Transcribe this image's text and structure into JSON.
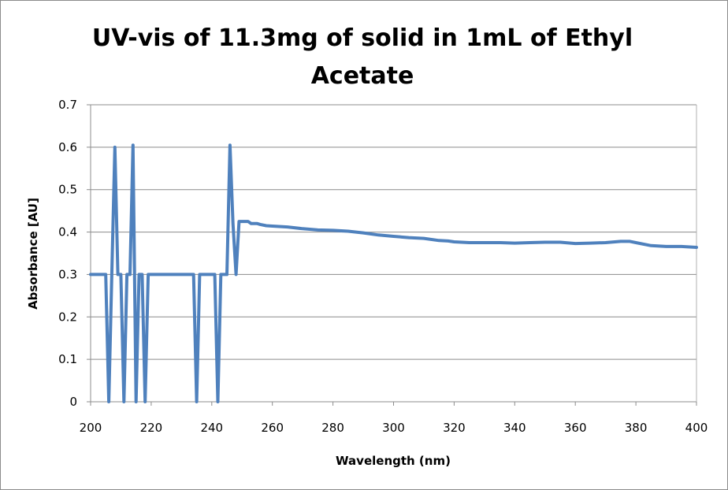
{
  "chart_data": {
    "type": "line",
    "title_line1": "UV-vis of 11.3mg of solid in 1mL of Ethyl",
    "title_line2": "Acetate",
    "xlabel": "Wavelength (nm)",
    "ylabel": "Absorbance [AU]",
    "xlim": [
      200,
      400
    ],
    "ylim": [
      0,
      0.7
    ],
    "xticks": [
      200,
      220,
      240,
      260,
      280,
      300,
      320,
      340,
      360,
      380,
      400
    ],
    "yticks": [
      0,
      0.1,
      0.2,
      0.3,
      0.4,
      0.5,
      0.6,
      0.7
    ],
    "ytick_labels": [
      "0",
      "0.1",
      "0.2",
      "0.3",
      "0.4",
      "0.5",
      "0.6",
      "0.7"
    ],
    "grid": "horizontal",
    "line_color": "#4f81bd",
    "series": [
      {
        "x": [
          200,
          201,
          202,
          203,
          204,
          205,
          206,
          207,
          208,
          209,
          210,
          211,
          212,
          213,
          214,
          215,
          216,
          217,
          218,
          219,
          220,
          222,
          225,
          228,
          230,
          233,
          234,
          235,
          236,
          237,
          238,
          240,
          241,
          242,
          243,
          244,
          245,
          246,
          247,
          248,
          249,
          250,
          251,
          252,
          253,
          254,
          255,
          256,
          258,
          260,
          265,
          270,
          275,
          280,
          285,
          290,
          295,
          300,
          305,
          310,
          315,
          318,
          320,
          325,
          330,
          335,
          340,
          345,
          350,
          355,
          360,
          365,
          370,
          375,
          378,
          380,
          385,
          390,
          395,
          400
        ],
        "y": [
          0.3,
          0.3,
          0.3,
          0.3,
          0.3,
          0.3,
          0.0,
          0.3,
          0.6,
          0.3,
          0.3,
          0.0,
          0.3,
          0.3,
          0.605,
          0.0,
          0.3,
          0.3,
          0.0,
          0.3,
          0.3,
          0.3,
          0.3,
          0.3,
          0.3,
          0.3,
          0.3,
          0.0,
          0.3,
          0.3,
          0.3,
          0.3,
          0.3,
          0.0,
          0.3,
          0.3,
          0.3,
          0.605,
          0.42,
          0.3,
          0.425,
          0.425,
          0.425,
          0.425,
          0.42,
          0.42,
          0.42,
          0.418,
          0.415,
          0.414,
          0.412,
          0.408,
          0.405,
          0.404,
          0.402,
          0.398,
          0.393,
          0.39,
          0.387,
          0.385,
          0.38,
          0.379,
          0.377,
          0.375,
          0.375,
          0.375,
          0.374,
          0.375,
          0.376,
          0.376,
          0.373,
          0.374,
          0.375,
          0.378,
          0.378,
          0.375,
          0.368,
          0.366,
          0.366,
          0.364
        ]
      }
    ]
  }
}
